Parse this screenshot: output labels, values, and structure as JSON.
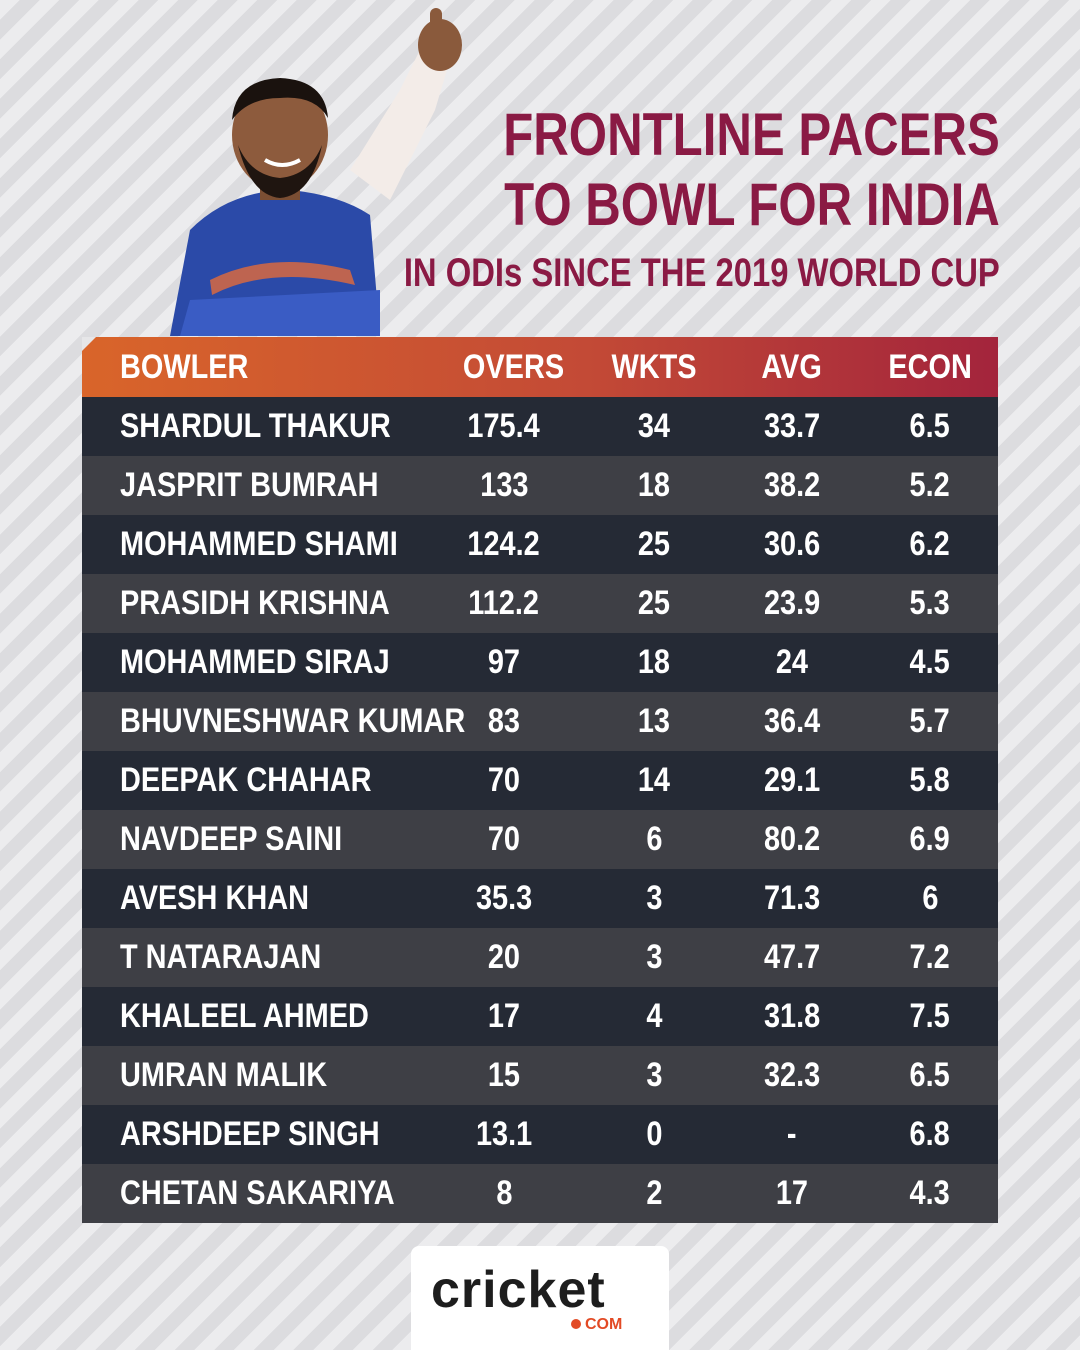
{
  "title": {
    "line1": "FRONTLINE PACERS",
    "line2": "TO BOWL FOR INDIA",
    "subtitle": "IN ODIs SINCE THE 2019 WORLD CUP"
  },
  "table": {
    "headers": [
      "BOWLER",
      "OVERS",
      "WKTS",
      "AVG",
      "ECON"
    ],
    "rows": [
      {
        "bowler": "SHARDUL THAKUR",
        "overs": "175.4",
        "wkts": "34",
        "avg": "33.7",
        "econ": "6.5"
      },
      {
        "bowler": "JASPRIT BUMRAH",
        "overs": "133",
        "wkts": "18",
        "avg": "38.2",
        "econ": "5.2"
      },
      {
        "bowler": "MOHAMMED SHAMI",
        "overs": "124.2",
        "wkts": "25",
        "avg": "30.6",
        "econ": "6.2"
      },
      {
        "bowler": "PRASIDH KRISHNA",
        "overs": "112.2",
        "wkts": "25",
        "avg": "23.9",
        "econ": "5.3"
      },
      {
        "bowler": "MOHAMMED SIRAJ",
        "overs": "97",
        "wkts": "18",
        "avg": "24",
        "econ": "4.5"
      },
      {
        "bowler": "BHUVNESHWAR KUMAR",
        "overs": "83",
        "wkts": "13",
        "avg": "36.4",
        "econ": "5.7"
      },
      {
        "bowler": "DEEPAK CHAHAR",
        "overs": "70",
        "wkts": "14",
        "avg": "29.1",
        "econ": "5.8"
      },
      {
        "bowler": "NAVDEEP SAINI",
        "overs": "70",
        "wkts": "6",
        "avg": "80.2",
        "econ": "6.9"
      },
      {
        "bowler": "AVESH KHAN",
        "overs": "35.3",
        "wkts": "3",
        "avg": "71.3",
        "econ": "6"
      },
      {
        "bowler": "T NATARAJAN",
        "overs": "20",
        "wkts": "3",
        "avg": "47.7",
        "econ": "7.2"
      },
      {
        "bowler": "KHALEEL AHMED",
        "overs": "17",
        "wkts": "4",
        "avg": "31.8",
        "econ": "7.5"
      },
      {
        "bowler": "UMRAN MALIK",
        "overs": "15",
        "wkts": "3",
        "avg": "32.3",
        "econ": "6.5"
      },
      {
        "bowler": "ARSHDEEP SINGH",
        "overs": "13.1",
        "wkts": "0",
        "avg": "-",
        "econ": "6.8"
      },
      {
        "bowler": "CHETAN SAKARIYA",
        "overs": "8",
        "wkts": "2",
        "avg": "17",
        "econ": "4.3"
      }
    ]
  },
  "logo": {
    "brand": "cricket",
    "suffix": "COM"
  },
  "colors": {
    "title": "#8a1a44",
    "header_start": "#d9652a",
    "header_end": "#a3243c",
    "row_dark": "#252a35",
    "row_light": "#3e3f45",
    "accent": "#e24a25"
  },
  "icons": {
    "player_photo": "cricketer-thumbs-up-illustration"
  }
}
